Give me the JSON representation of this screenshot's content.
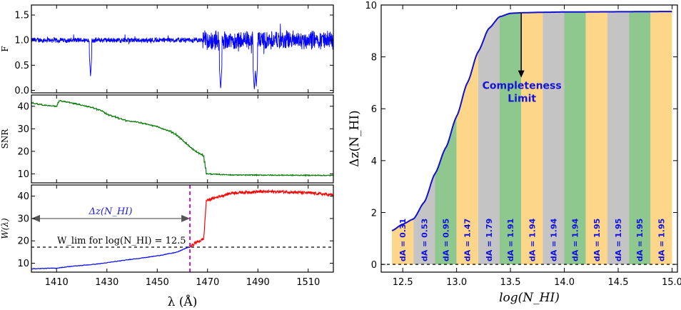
{
  "chart_data": [
    {
      "type": "line",
      "panel": "flux",
      "ylabel": "F",
      "xlim": [
        1400,
        1520
      ],
      "ylim": [
        -0.05,
        1.7
      ],
      "yticks": [
        "0.0",
        "0.5",
        "1.0",
        "1.5"
      ],
      "ytick_values": [
        0.0,
        0.5,
        1.0,
        1.5
      ],
      "color": "#0000ff",
      "baseline": 1.0,
      "absorption_lines": [
        {
          "x": 1423.5,
          "depth_to": 0.27
        },
        {
          "x": 1475.2,
          "depth_to": 0.02
        },
        {
          "x": 1488.6,
          "depth_to": 0.0
        },
        {
          "x": 1489.4,
          "depth_to": 0.08
        }
      ],
      "noise_regions": [
        {
          "x0": 1400,
          "x1": 1468,
          "amplitude": 0.06
        },
        {
          "x0": 1468,
          "x1": 1520,
          "amplitude": 0.22
        }
      ]
    },
    {
      "type": "line",
      "panel": "snr",
      "ylabel": "SNR",
      "xlim": [
        1400,
        1520
      ],
      "ylim": [
        6,
        45
      ],
      "yticks": [
        "10",
        "20",
        "30",
        "40"
      ],
      "ytick_values": [
        10,
        20,
        30,
        40
      ],
      "color": "#0a7a0a",
      "x": [
        1400,
        1405,
        1410,
        1411,
        1416,
        1420,
        1424,
        1428,
        1430,
        1434,
        1438,
        1442,
        1446,
        1450,
        1452,
        1455,
        1458,
        1460,
        1462,
        1464,
        1466,
        1468.5,
        1469.5,
        1480,
        1500,
        1520
      ],
      "y": [
        41.5,
        40.5,
        40,
        42.5,
        41.5,
        40.5,
        39.5,
        38,
        36.5,
        35,
        33.5,
        33,
        32,
        31,
        30,
        29,
        27,
        25,
        23,
        21,
        19.5,
        18,
        10,
        9.5,
        9.4,
        9.3
      ]
    },
    {
      "type": "line",
      "panel": "W",
      "ylabel": "W(λ)",
      "xlim": [
        1400,
        1520
      ],
      "ylim": [
        6,
        45
      ],
      "yticks": [
        "10",
        "20",
        "30",
        "40"
      ],
      "ytick_values": [
        10,
        20,
        30,
        40
      ],
      "blue_series": {
        "x": [
          1400,
          1410,
          1415,
          1420,
          1425,
          1430,
          1435,
          1440,
          1445,
          1450,
          1455,
          1458,
          1460,
          1462,
          1463
        ],
        "y": [
          7.5,
          7.8,
          8.5,
          9,
          9.5,
          10.2,
          11,
          11.8,
          12.5,
          13.3,
          14.3,
          15,
          16,
          17,
          17.2
        ]
      },
      "red_series": {
        "x": [
          1463,
          1465,
          1467,
          1468.5,
          1469.5,
          1475,
          1480,
          1490,
          1500,
          1510,
          1520
        ],
        "y": [
          17.2,
          19,
          20,
          21,
          38,
          40,
          41.5,
          42,
          42,
          41.5,
          40.5
        ]
      },
      "wlim_value": 17.2,
      "wlim_label": "W_lim for log(N_HI) = 12.5",
      "vline_x": 1463,
      "arrow_x0": 1400,
      "arrow_x1": 1463,
      "arrow_y": 30,
      "arrow_label": "Δz(N_HI)",
      "xticks": [
        "1410",
        "1430",
        "1450",
        "1470",
        "1490",
        "1510"
      ],
      "xtick_values": [
        1410,
        1430,
        1450,
        1470,
        1490,
        1510
      ],
      "xlabel": "λ (Å)"
    },
    {
      "type": "area",
      "panel": "completeness",
      "xlabel": "log(N_HI)",
      "ylabel": "Δz(N_HI)",
      "xlim": [
        12.3,
        15.05
      ],
      "ylim": [
        -0.3,
        10
      ],
      "xticks": [
        "12.5",
        "13.0",
        "13.5",
        "14.0",
        "14.5",
        "15.0"
      ],
      "xtick_values": [
        12.5,
        13.0,
        13.5,
        14.0,
        14.5,
        15.0
      ],
      "yticks": [
        "0",
        "2",
        "4",
        "6",
        "8",
        "10"
      ],
      "ytick_values": [
        0,
        2,
        4,
        6,
        8,
        10
      ],
      "curve_x": [
        12.4,
        12.5,
        12.6,
        12.7,
        12.8,
        12.9,
        13.0,
        13.1,
        13.2,
        13.3,
        13.4,
        13.5,
        13.6,
        13.8,
        14.0,
        14.5,
        15.0
      ],
      "curve_y": [
        1.3,
        1.55,
        1.75,
        2.4,
        3.5,
        4.5,
        5.7,
        7.0,
        8.2,
        9.1,
        9.55,
        9.68,
        9.7,
        9.72,
        9.73,
        9.74,
        9.75
      ],
      "bins": [
        {
          "x0": 12.4,
          "x1": 12.6,
          "color": "#fdd68a",
          "label": "dA = 0.31"
        },
        {
          "x0": 12.6,
          "x1": 12.8,
          "color": "#c4c4c4",
          "label": "dA = 0.53"
        },
        {
          "x0": 12.8,
          "x1": 13.0,
          "color": "#8fc88f",
          "label": "dA = 0.95"
        },
        {
          "x0": 13.0,
          "x1": 13.2,
          "color": "#fdd68a",
          "label": "dA = 1.47"
        },
        {
          "x0": 13.2,
          "x1": 13.4,
          "color": "#c4c4c4",
          "label": "dA = 1.79"
        },
        {
          "x0": 13.4,
          "x1": 13.6,
          "color": "#8fc88f",
          "label": "dA = 1.91"
        },
        {
          "x0": 13.6,
          "x1": 13.8,
          "color": "#fdd68a",
          "label": "dA = 1.94"
        },
        {
          "x0": 13.8,
          "x1": 14.0,
          "color": "#c4c4c4",
          "label": "dA = 1.94"
        },
        {
          "x0": 14.0,
          "x1": 14.2,
          "color": "#8fc88f",
          "label": "dA = 1.94"
        },
        {
          "x0": 14.2,
          "x1": 14.4,
          "color": "#fdd68a",
          "label": "dA = 1.95"
        },
        {
          "x0": 14.4,
          "x1": 14.6,
          "color": "#c4c4c4",
          "label": "dA = 1.95"
        },
        {
          "x0": 14.6,
          "x1": 14.8,
          "color": "#8fc88f",
          "label": "dA = 1.95"
        },
        {
          "x0": 14.8,
          "x1": 15.0,
          "color": "#fdd68a",
          "label": "dA = 1.95"
        }
      ],
      "completeness_label_line1": "Completeness",
      "completeness_label_line2": "Limit",
      "completeness_arrow_x": 13.6,
      "completeness_arrow_y0": 9.7,
      "completeness_arrow_y1": 7.2
    }
  ]
}
